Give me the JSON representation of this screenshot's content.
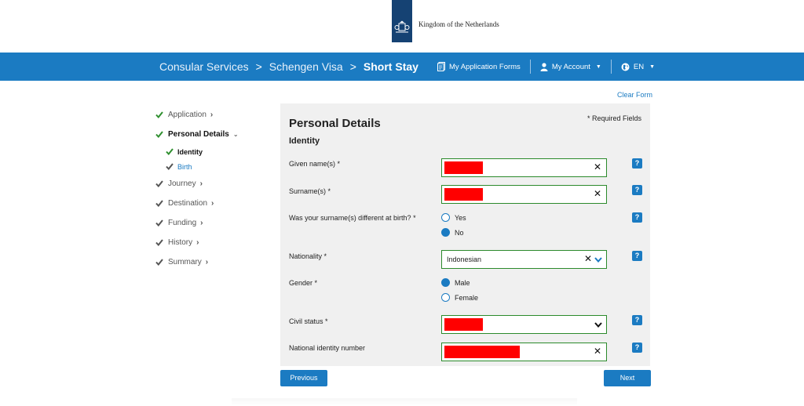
{
  "header": {
    "logo_text": "Kingdom of the Netherlands"
  },
  "nav": {
    "breadcrumbs": [
      "Consular Services",
      "Schengen Visa",
      "Short Stay"
    ],
    "separator": ">",
    "links": {
      "forms": "My Application Forms",
      "account": "My Account",
      "language": "EN"
    }
  },
  "sidebar": {
    "steps": [
      {
        "label": "Application"
      },
      {
        "label": "Personal Details"
      },
      {
        "label": "Journey"
      },
      {
        "label": "Destination"
      },
      {
        "label": "Funding"
      },
      {
        "label": "History"
      },
      {
        "label": "Summary"
      }
    ],
    "substeps": [
      {
        "label": "Identity"
      },
      {
        "label": "Birth"
      }
    ]
  },
  "clear_form": "Clear Form",
  "form": {
    "title": "Personal Details",
    "required_note": "* Required Fields",
    "section": "Identity",
    "given_names_label": "Given name(s) *",
    "surname_label": "Surname(s) *",
    "surname_diff_label": "Was your surname(s) different at birth? *",
    "surname_diff_options": [
      "Yes",
      "No"
    ],
    "surname_diff_selected": "No",
    "nationality_label": "Nationality *",
    "nationality_value": "Indonesian",
    "gender_label": "Gender *",
    "gender_options": [
      "Male",
      "Female"
    ],
    "gender_selected": "Male",
    "civil_status_label": "Civil status *",
    "national_id_label": "National identity number",
    "help_glyph": "?",
    "clear_glyph": "✕"
  },
  "buttons": {
    "previous": "Previous",
    "next": "Next"
  },
  "colors": {
    "brand_blue": "#1b7bc2",
    "logo_navy": "#154273",
    "valid_green": "#2b8a2b",
    "redaction": "#ff0000",
    "check_green": "#2f8f2f"
  }
}
